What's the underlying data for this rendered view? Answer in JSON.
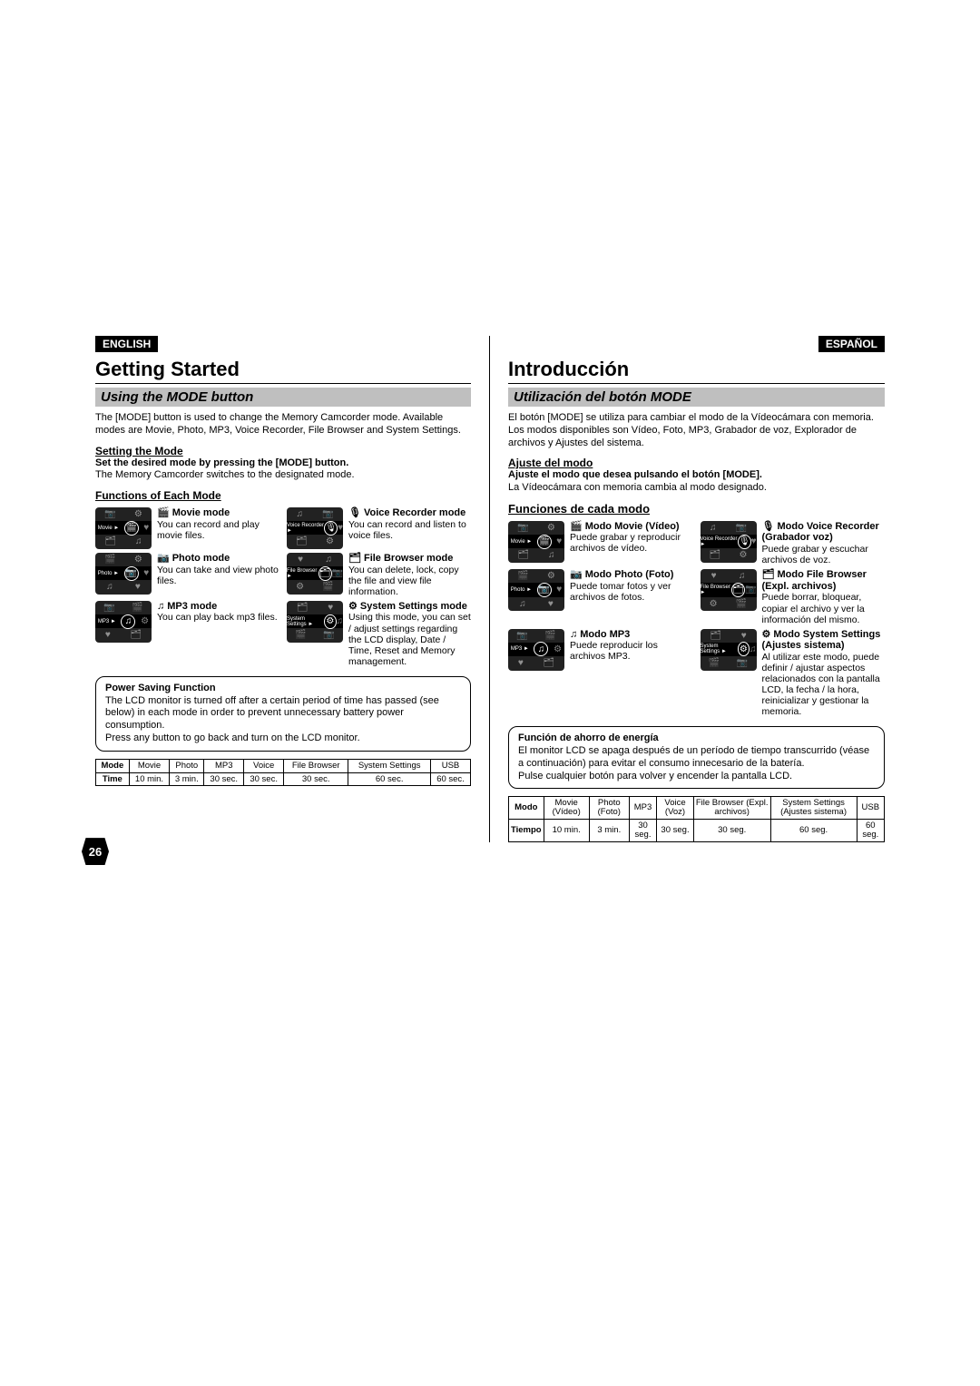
{
  "page_number": "26",
  "english": {
    "lang_label": "ENGLISH",
    "title": "Getting Started",
    "section": "Using the MODE button",
    "intro": "The [MODE] button is used to change the Memory Camcorder mode. Available modes are Movie, Photo, MP3, Voice Recorder, File Browser and System Settings.",
    "setting_head": "Setting the Mode",
    "setting_line1": "Set the desired mode by pressing the [MODE] button.",
    "setting_line2": "The Memory Camcorder switches to the designated mode.",
    "functions_head": "Functions of Each Mode",
    "modes": {
      "movie": {
        "icon_label": "Movie ►",
        "glyph": "🎬",
        "sym": "🎬",
        "title": "Movie mode",
        "desc": "You can record and play movie files."
      },
      "photo": {
        "icon_label": "Photo ►",
        "glyph": "📷",
        "sym": "📷",
        "title": "Photo mode",
        "desc": "You can take and view photo files."
      },
      "mp3": {
        "icon_label": "MP3 ►",
        "glyph": "♫",
        "sym": "♫",
        "title": "MP3 mode",
        "desc": "You can play back mp3 files."
      },
      "voice": {
        "icon_label": "Voice Recorder ►",
        "glyph": "🎙",
        "sym": "🎙",
        "title": "Voice Recorder mode",
        "desc": "You can record and listen to voice files."
      },
      "file": {
        "icon_label": "File Browser ►",
        "glyph": "🗂",
        "sym": "🗂",
        "title": "File Browser mode",
        "desc": "You can delete, lock, copy the file and view file information."
      },
      "system": {
        "icon_label": "System Settings ►",
        "glyph": "⚙",
        "sym": "⚙",
        "title": "System Settings mode",
        "desc": "Using this mode, you can set / adjust settings regarding the LCD display, Date / Time, Reset and Memory management."
      }
    },
    "power": {
      "title": "Power Saving Function",
      "body1": "The LCD monitor is turned off after a certain period of time has passed (see below) in each mode in order to prevent unnecessary battery power consumption.",
      "body2": "Press any button to go back and turn on the LCD monitor."
    },
    "table": {
      "h_mode": "Mode",
      "h_time": "Time",
      "cols": [
        "Movie",
        "Photo",
        "MP3",
        "Voice",
        "File Browser",
        "System Settings",
        "USB"
      ],
      "vals": [
        "10 min.",
        "3 min.",
        "30 sec.",
        "30 sec.",
        "30 sec.",
        "60 sec.",
        "60 sec."
      ]
    }
  },
  "spanish": {
    "lang_label": "ESPAÑOL",
    "title": "Introducción",
    "section": "Utilización del botón MODE",
    "intro": "El botón [MODE] se utiliza para cambiar el modo de la Vídeocámara con memoria. Los modos disponibles son Vídeo, Foto, MP3, Grabador de voz, Explorador de archivos y Ajustes del sistema.",
    "setting_head": "Ajuste del modo",
    "setting_line1": "Ajuste el modo que desea pulsando el botón [MODE].",
    "setting_line2": "La Vídeocámara con memoria cambia al modo designado.",
    "functions_head": "Funciones de cada modo",
    "modes": {
      "movie": {
        "icon_label": "Movie ►",
        "glyph": "🎬",
        "sym": "🎬",
        "title": "Modo Movie (Vídeo)",
        "desc": "Puede grabar y reproducir archivos de vídeo."
      },
      "photo": {
        "icon_label": "Photo ►",
        "glyph": "📷",
        "sym": "📷",
        "title": "Modo Photo (Foto)",
        "desc": "Puede tomar fotos y ver archivos de fotos."
      },
      "mp3": {
        "icon_label": "MP3 ►",
        "glyph": "♫",
        "sym": "♫",
        "title": "Modo MP3",
        "desc": "Puede reproducir los archivos MP3."
      },
      "voice": {
        "icon_label": "Voice Recorder ►",
        "glyph": "🎙",
        "sym": "🎙",
        "title": "Modo Voice Recorder (Grabador voz)",
        "desc": "Puede grabar y escuchar archivos de voz."
      },
      "file": {
        "icon_label": "File Browser ►",
        "glyph": "🗂",
        "sym": "🗂",
        "title": "Modo File Browser (Expl. archivos)",
        "desc": "Puede borrar, bloquear, copiar el archivo y ver la información del mismo."
      },
      "system": {
        "icon_label": "System Settings ►",
        "glyph": "⚙",
        "sym": "⚙",
        "title": "Modo System Settings (Ajustes sistema)",
        "desc": "Al utilizar este modo, puede definir / ajustar aspectos relacionados con la pantalla LCD, la fecha / la hora, reinicializar y gestionar la memoria."
      }
    },
    "power": {
      "title": "Función de ahorro de energía",
      "body1": "El monitor LCD se apaga después de un período de tiempo transcurrido (véase a continuación) para evitar el consumo innecesario de la batería.",
      "body2": "Pulse cualquier botón para volver y encender la pantalla LCD."
    },
    "table": {
      "h_mode": "Modo",
      "h_time": "Tiempo",
      "cols": [
        "Movie (Vídeo)",
        "Photo (Foto)",
        "MP3",
        "Voice (Voz)",
        "File Browser (Expl. archivos)",
        "System Settings (Ajustes sistema)",
        "USB"
      ],
      "vals": [
        "10 min.",
        "3 min.",
        "30 seg.",
        "30 seg.",
        "30 seg.",
        "60 seg.",
        "60 seg."
      ]
    }
  }
}
